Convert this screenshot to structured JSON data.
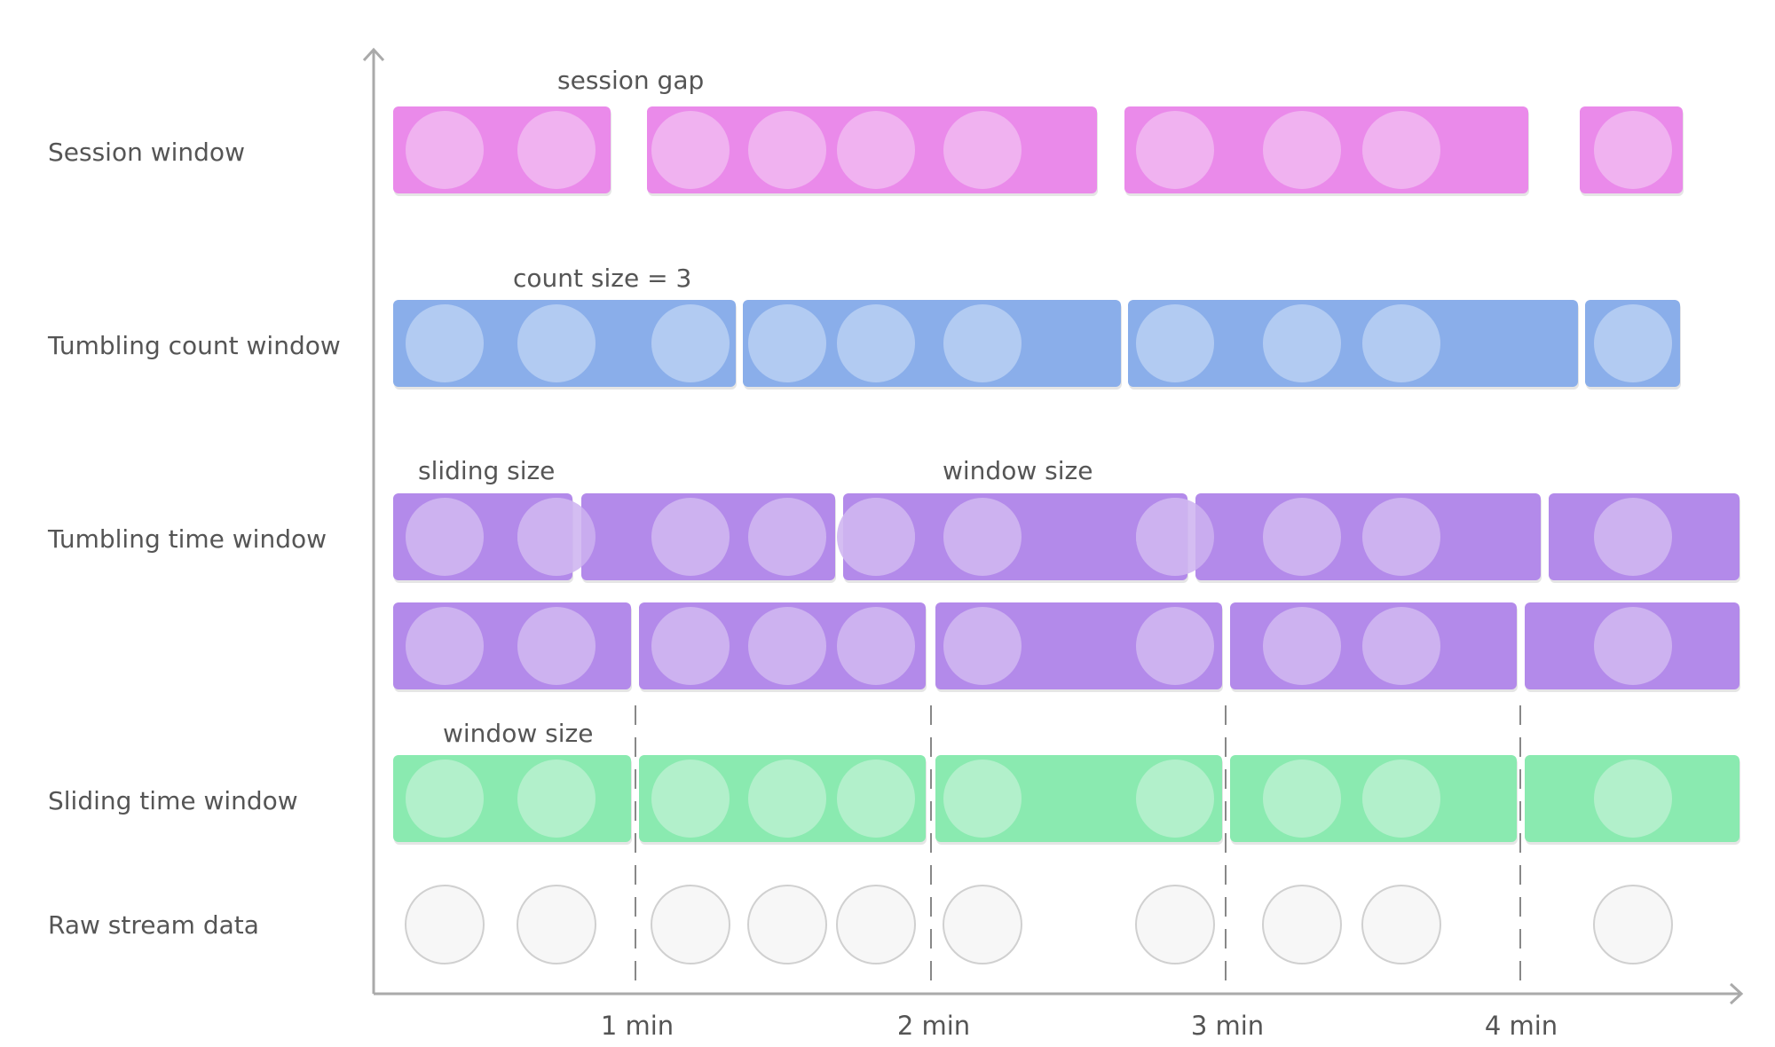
{
  "colors": {
    "session": "#ea8aea",
    "session_dot": "#f0b2f0",
    "count": "#8aaeea",
    "count_dot": "#b2cbf2",
    "tumbling": "#b38aea",
    "tumbling_dot": "#cdb2f0",
    "sliding": "#8aeab0",
    "sliding_dot": "#b2f0cb",
    "raw_dot_fill": "#f7f7f7",
    "raw_dot_stroke": "#d0d0d0",
    "axis": "#aaaaaa",
    "dash": "#888888",
    "text": "#555555"
  },
  "rows": {
    "session": "Session window",
    "count": "Tumbling count window",
    "tumbling": "Tumbling time window",
    "sliding": "Sliding time window",
    "raw": "Raw stream data"
  },
  "annotations": {
    "session_gap": "session gap",
    "count_size": "count size = 3",
    "sliding_size": "sliding size",
    "window_size_top": "window size",
    "window_size_bottom": "window size"
  },
  "axis": {
    "ticks": [
      "1 min",
      "2 min",
      "3 min",
      "4 min"
    ]
  }
}
